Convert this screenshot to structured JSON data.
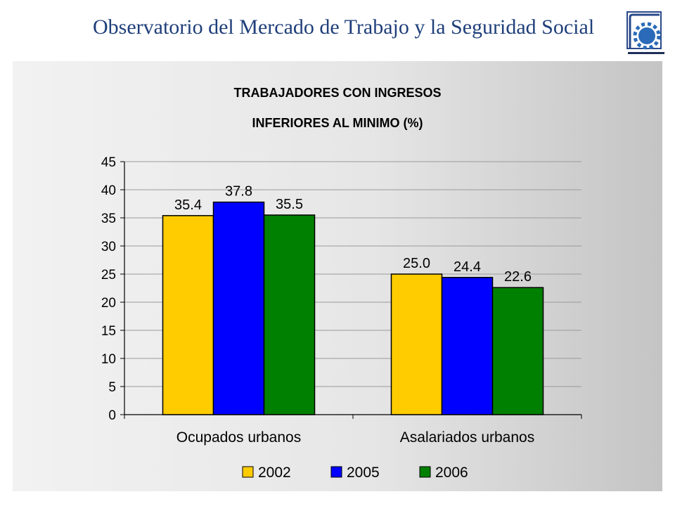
{
  "header": {
    "title": "Observatorio del Mercado de Trabajo y la Seguridad Social",
    "rule_color": "#1f2f5a",
    "title_color": "#1f3f7a"
  },
  "chart_data": {
    "type": "bar",
    "title_line1": "TRABAJADORES CON INGRESOS",
    "title_line2": "INFERIORES AL MINIMO (%)",
    "categories": [
      "Ocupados urbanos",
      "Asalariados urbanos"
    ],
    "series": [
      {
        "name": "2002",
        "color": "#ffcc00",
        "values": [
          35.4,
          25.0
        ],
        "labels": [
          "35.4",
          "25.0"
        ]
      },
      {
        "name": "2005",
        "color": "#0000ff",
        "values": [
          37.8,
          24.4
        ],
        "labels": [
          "37.8",
          "24.4"
        ]
      },
      {
        "name": "2006",
        "color": "#008000",
        "values": [
          35.5,
          22.6
        ],
        "labels": [
          "35.5",
          "22.6"
        ]
      }
    ],
    "ylim": [
      0,
      45
    ],
    "yticks": [
      "0",
      "5",
      "10",
      "15",
      "20",
      "25",
      "30",
      "35",
      "40",
      "45"
    ],
    "grid": true,
    "legend_position": "bottom"
  }
}
